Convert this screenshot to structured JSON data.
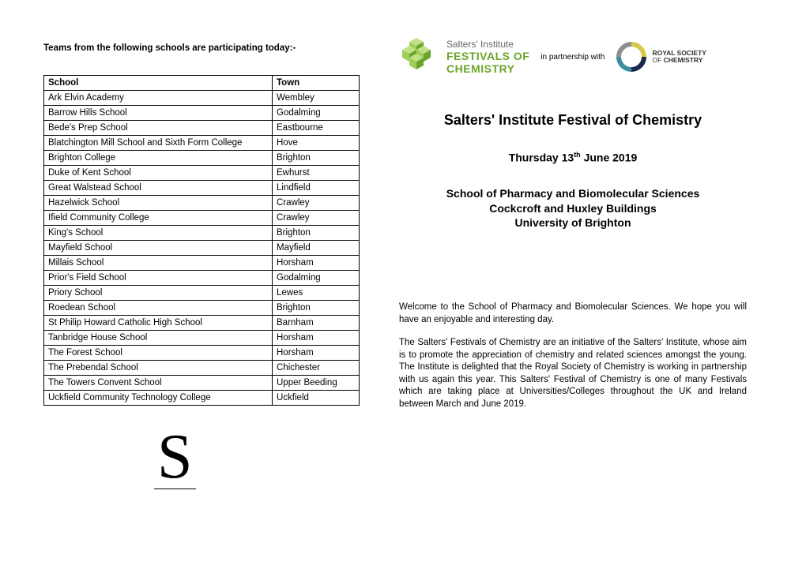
{
  "left": {
    "intro": "Teams from the following schools are participating today:-",
    "headers": {
      "school": "School",
      "town": "Town"
    },
    "rows": [
      {
        "school": "Ark Elvin Academy",
        "town": "Wembley"
      },
      {
        "school": "Barrow Hills School",
        "town": "Godalming"
      },
      {
        "school": "Bede's Prep School",
        "town": "Eastbourne"
      },
      {
        "school": "Blatchington Mill School and Sixth Form College",
        "town": "Hove"
      },
      {
        "school": "Brighton College",
        "town": "Brighton"
      },
      {
        "school": "Duke of Kent School",
        "town": "Ewhurst"
      },
      {
        "school": "Great Walstead School",
        "town": "Lindfield"
      },
      {
        "school": "Hazelwick School",
        "town": "Crawley"
      },
      {
        "school": "Ifield Community College",
        "town": "Crawley"
      },
      {
        "school": "King's School",
        "town": "Brighton"
      },
      {
        "school": "Mayfield School",
        "town": "Mayfield"
      },
      {
        "school": "Millais School",
        "town": "Horsham"
      },
      {
        "school": "Prior's Field School",
        "town": "Godalming"
      },
      {
        "school": "Priory School",
        "town": "Lewes"
      },
      {
        "school": "Roedean School",
        "town": "Brighton"
      },
      {
        "school": "St Philip Howard Catholic High School",
        "town": "Barnham"
      },
      {
        "school": "Tanbridge House School",
        "town": "Horsham"
      },
      {
        "school": "The Forest School",
        "town": "Horsham"
      },
      {
        "school": "The Prebendal School",
        "town": "Chichester"
      },
      {
        "school": "The Towers Convent School",
        "town": "Upper Beeding"
      },
      {
        "school": "Uckfield Community Technology College",
        "town": "Uckfield"
      }
    ],
    "glyph": "S"
  },
  "right": {
    "logos": {
      "salters_line1": "Salters' Institute",
      "salters_line2": "FESTIVALS OF",
      "salters_line3": "CHEMISTRY",
      "partnership": "in partnership with",
      "rsc_line1": "ROYAL SOCIETY",
      "rsc_line2": "OF CHEMISTRY"
    },
    "title": "Salters' Institute Festival of Chemistry",
    "date_pre": "Thursday 13",
    "date_sup": "th",
    "date_post": " June 2019",
    "venue_l1": "School of Pharmacy and Biomolecular Sciences",
    "venue_l2": "Cockcroft and Huxley Buildings",
    "venue_l3": "University of Brighton",
    "para1": "Welcome to the School of Pharmacy and Biomolecular Sciences. We hope you will have an enjoyable and interesting day.",
    "para2": "The Salters' Festivals of Chemistry are an initiative of the Salters' Institute, whose aim is to promote the appreciation of chemistry and related sciences amongst the young. The Institute is delighted that the Royal Society of Chemistry is working in partnership with us again this year. This Salters' Festival of Chemistry is one of many Festivals which are taking place at Universities/Colleges throughout the UK and Ireland between March and June 2019."
  },
  "colors": {
    "salters_green_light": "#9fcf56",
    "salters_green_dark": "#6aa52a",
    "rsc_yellow": "#d9c84a",
    "rsc_teal": "#3a8e9e",
    "rsc_navy": "#1a2a4a",
    "rsc_grey": "#8a8f94"
  }
}
